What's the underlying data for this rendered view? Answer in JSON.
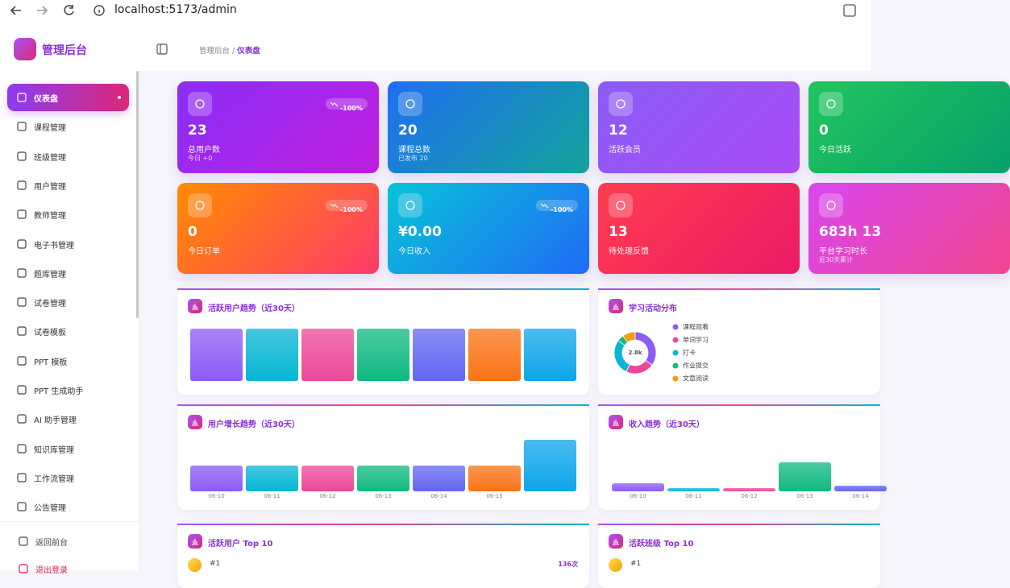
{
  "browser": {
    "url": "localhost:5173/admin"
  },
  "sidebar": {
    "brand": "管理后台",
    "menu": [
      "仪表盘",
      "课程管理",
      "班级管理",
      "用户管理",
      "教师管理",
      "电子书管理",
      "题库管理",
      "试卷管理",
      "试卷模板",
      "PPT 模板",
      "PPT 生成助手",
      "AI 助手管理",
      "知识库管理",
      "工作流管理",
      "公告管理"
    ],
    "footer": [
      "返回前台",
      "退出登录"
    ]
  },
  "header": {
    "breadcrumb": [
      "管理后台",
      "仪表盘"
    ],
    "separator": "/"
  },
  "stats": [
    {
      "value": 23,
      "label": "总用户数",
      "sub": "今日 +0",
      "badge": "-100%",
      "color": [
        "#8a2ef5",
        "#c01ee0"
      ]
    },
    {
      "value": 20,
      "label": "课程总数",
      "sub": "已发布 20",
      "color": [
        "#1f6ff2",
        "#13a39a"
      ]
    },
    {
      "value": 12,
      "label": "活跃会员",
      "color": [
        "#8b5cf6",
        "#a94cf5"
      ]
    },
    {
      "value": 0,
      "label": "今日活跃",
      "color": [
        "#22c55e",
        "#06a06a"
      ]
    },
    {
      "value": 0,
      "label": "今日订单",
      "badge": "-100%",
      "color": [
        "#ff8c00",
        "#ff3a6a"
      ]
    },
    {
      "value": "¥0.00",
      "label": "今日收入",
      "badge": "-100%",
      "color": [
        "#08c3d8",
        "#1f6cf5"
      ]
    },
    {
      "value": 13,
      "label": "待处理反馈",
      "color": [
        "#ff3d4f",
        "#ec1a66"
      ]
    },
    {
      "value": "683h 13",
      "label": "平台学习时长",
      "sub": "近30天累计",
      "color": [
        "#d946ef",
        "#f0468f"
      ]
    }
  ],
  "chart_data": [
    {
      "type": "bar",
      "title": "活跃用户趋势（近30天）",
      "categories": [
        null,
        null,
        null,
        null,
        null,
        null,
        null
      ],
      "values": [
        1,
        1,
        1,
        1,
        1,
        1,
        1
      ],
      "ylim": [
        0,
        1
      ],
      "colors": [
        "#8b5cf6",
        "#06b6d4",
        "#ec4899",
        "#10b981",
        "#6366f1",
        "#f97316",
        "#0ea5e9"
      ]
    },
    {
      "type": "pie",
      "title": "学习活动分布",
      "center_label": "2.8k",
      "categories": [
        "课程观看",
        "单词学习",
        "打卡",
        "作业提交",
        "文章阅读"
      ],
      "values": [
        980,
        616,
        784,
        140,
        280
      ],
      "colors": [
        "#8b5cf6",
        "#ec4899",
        "#06b6d4",
        "#10b981",
        "#f59e0b"
      ]
    },
    {
      "type": "bar",
      "title": "用户增长趋势（近30天）",
      "categories": [
        "06-10",
        "06-11",
        "06-12",
        "06-13",
        "06-14",
        "06-15",
        null
      ],
      "values": [
        1,
        1,
        1,
        1,
        1,
        1,
        2
      ],
      "ylim": [
        0,
        2
      ],
      "colors": [
        "#8b5cf6",
        "#06b6d4",
        "#ec4899",
        "#10b981",
        "#6366f1",
        "#f97316",
        "#0ea5e9"
      ]
    },
    {
      "type": "bar",
      "title": "收入趋势（近30天）",
      "categories": [
        "06-10",
        "06-11",
        "06-12",
        "06-13",
        "06-14"
      ],
      "values": [
        10,
        4,
        4,
        36,
        7
      ],
      "ylim": [
        0,
        60
      ],
      "colors": [
        "#8b5cf6",
        "#06b6d4",
        "#ec4899",
        "#10b981",
        "#6366f1"
      ]
    }
  ],
  "rankings": [
    {
      "title": "活跃用户 Top 10",
      "rows": [
        {
          "rank": "#1",
          "count": "136次"
        }
      ]
    },
    {
      "title": "活跃班级 Top 10",
      "rows": [
        {
          "rank": "#1"
        }
      ]
    }
  ]
}
